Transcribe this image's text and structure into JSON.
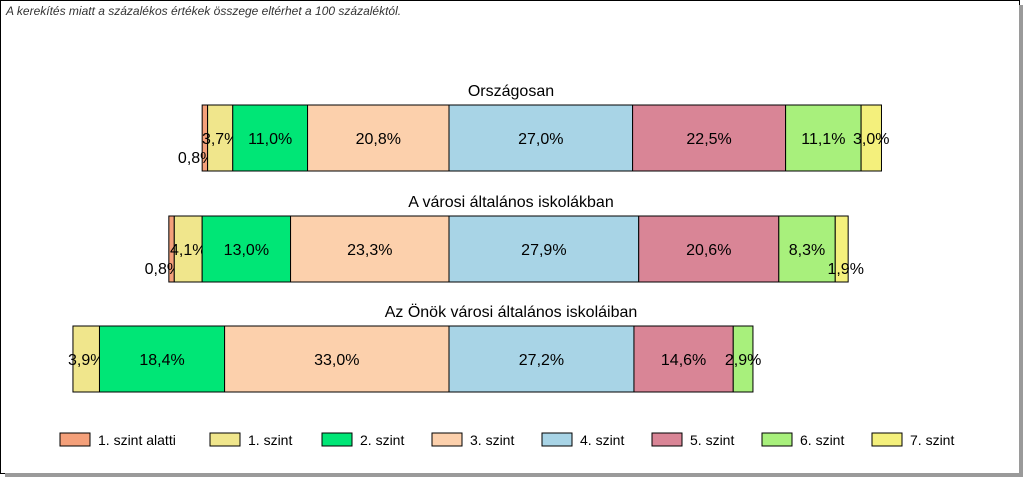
{
  "note": "A kerekítés miatt a  százalékos értékek összege eltérhet a 100 százaléktól.",
  "chart_data": {
    "type": "bar",
    "orientation": "horizontal",
    "stacked": true,
    "categories": [
      "Országosan",
      "A városi általános iskolákban",
      "Az Önök városi általános iskoláiban"
    ],
    "series": [
      {
        "name": "1. szint alatti",
        "color": "#f4a07a",
        "values": [
          0.8,
          0.8,
          0.0
        ],
        "labels": [
          "0,8%",
          "0,8%",
          ""
        ]
      },
      {
        "name": "1. szint",
        "color": "#f0e68c",
        "values": [
          3.7,
          4.1,
          3.9
        ],
        "labels": [
          "3,7%",
          "4,1%",
          "3,9%"
        ]
      },
      {
        "name": "2. szint",
        "color": "#00e676",
        "values": [
          11.0,
          13.0,
          18.4
        ],
        "labels": [
          "11,0%",
          "13,0%",
          "18,4%"
        ]
      },
      {
        "name": "3. szint",
        "color": "#fcd0ac",
        "values": [
          20.8,
          23.3,
          33.0
        ],
        "labels": [
          "20,8%",
          "23,3%",
          "33,0%"
        ]
      },
      {
        "name": "4. szint",
        "color": "#a8d4e6",
        "values": [
          27.0,
          27.9,
          27.2
        ],
        "labels": [
          "27,0%",
          "27,9%",
          "27,2%"
        ]
      },
      {
        "name": "5. szint",
        "color": "#d98596",
        "values": [
          22.5,
          20.6,
          14.6
        ],
        "labels": [
          "22,5%",
          "20,6%",
          "14,6%"
        ]
      },
      {
        "name": "6. szint",
        "color": "#a8f07c",
        "values": [
          11.1,
          8.3,
          2.9
        ],
        "labels": [
          "11,1%",
          "8,3%",
          "2,9%"
        ]
      },
      {
        "name": "7. szint",
        "color": "#f4f07c",
        "values": [
          3.0,
          1.9,
          0.0
        ],
        "labels": [
          "3,0%",
          "1,9%",
          ""
        ]
      }
    ],
    "center": "between 3. szint and 4. szint",
    "legend_position": "bottom",
    "grid": false
  }
}
